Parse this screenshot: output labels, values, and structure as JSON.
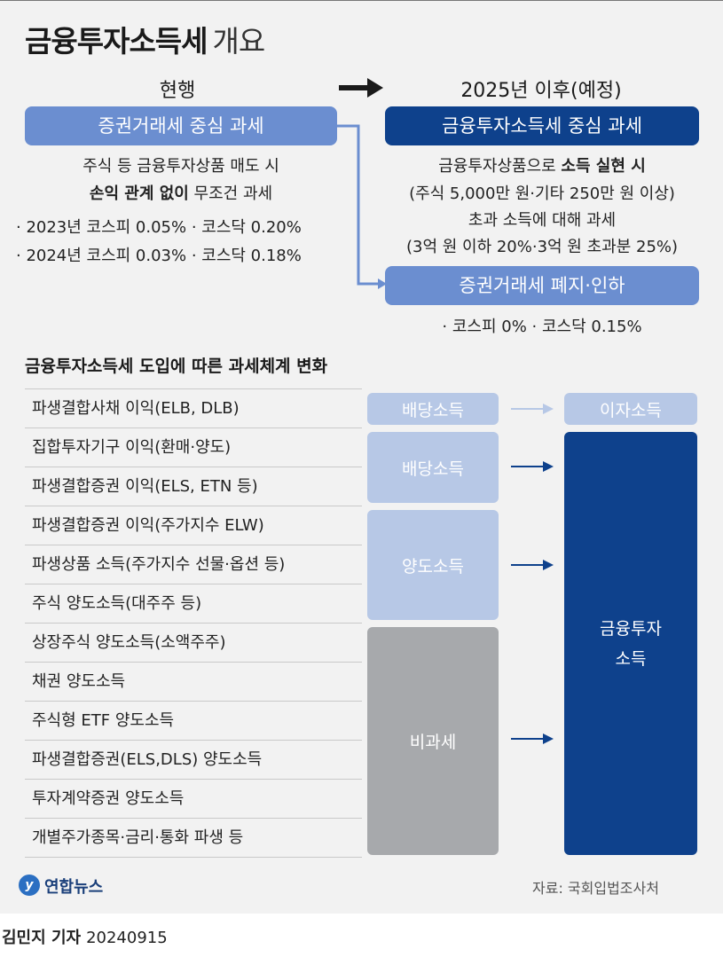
{
  "title": {
    "bold": "금융투자소득세",
    "light": "개요"
  },
  "current": {
    "heading": "현행",
    "pill": "증권거래세 중심 과세",
    "desc_line1": "주식 등 금융투자상품 매도 시",
    "desc_line2_bold": "손익 관계 없이",
    "desc_line2_rest": " 무조건 과세",
    "bullets": [
      "· 2023년 코스피 0.05% · 코스닥 0.20%",
      "· 2024년 코스피 0.03% · 코스닥 0.18%"
    ]
  },
  "future": {
    "heading": "2025년 이후(예정)",
    "pill1": "금융투자소득세 중심 과세",
    "desc_line1_pre": "금융투자상품으로 ",
    "desc_line1_bold": "소득 실현 시",
    "desc_line2": "(주식 5,000만 원·기타 250만 원 이상)",
    "desc_line3": "초과 소득에 대해 과세",
    "desc_line4": "(3억 원 이하 20%·3억 원 초과분 25%)",
    "pill2": "증권거래세 폐지·인하",
    "bullet": "· 코스피 0% · 코스닥 0.15%"
  },
  "section_title": "금융투자소득세 도입에 따른 과세체계 변화",
  "rows": [
    "파생결합사채 이익(ELB, DLB)",
    "집합투자기구 이익(환매·양도)",
    "파생결합증권 이익(ELS, ETN 등)",
    "파생결합증권 이익(주가지수 ELW)",
    "파생상품 소득(주가지수 선물·옵션 등)",
    "주식 양도소득(대주주 등)",
    "상장주식 양도소득(소액주주)",
    "채권 양도소득",
    "주식형 ETF 양도소득",
    "파생결합증권(ELS,DLS) 양도소득",
    "투자계약증권 양도소득",
    "개별주가종목·금리·통화 파생 등"
  ],
  "boxes": {
    "dividend_top": "배당소득",
    "interest": "이자소득",
    "dividend": "배당소득",
    "transfer": "양도소득",
    "non_taxed": "비과세",
    "fin_line1": "금융투자",
    "fin_line2": "소득"
  },
  "colors": {
    "navy": "#0e418c",
    "light_blue": "#6b8ed0",
    "pale_blue": "#b7c8e6",
    "gray": "#a7a9ac"
  },
  "footer": {
    "logo_mark": "y",
    "logo_text": "연합뉴스",
    "source": "자료: 국회입법조사처"
  },
  "reporter": {
    "name": "김민지 기자",
    "date": "20240915"
  }
}
